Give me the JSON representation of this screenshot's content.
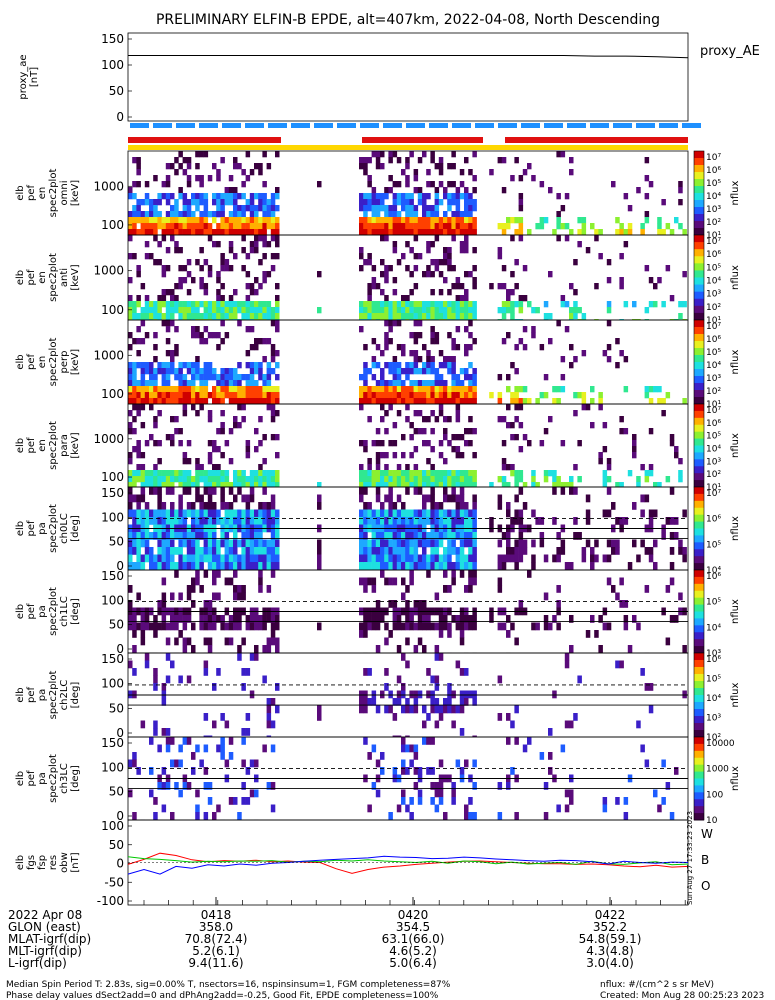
{
  "title": "PRELIMINARY ELFIN-B EPDE, alt=407km, 2022-04-08, North Descending",
  "chart_data": [
    {
      "type": "line",
      "name": "proxy_ae",
      "ylabel": [
        "proxy_ae",
        "[nT]"
      ],
      "right_label": "proxy_AE",
      "ylim": [
        -5,
        155
      ],
      "yticks": [
        "150",
        "100",
        "50",
        "0"
      ],
      "series": [
        {
          "values": [
            114,
            114,
            114,
            114,
            114,
            114,
            114,
            114,
            114,
            114,
            114,
            114,
            114,
            114,
            114,
            113,
            113,
            112,
            110
          ]
        }
      ]
    },
    {
      "type": "heatmap",
      "name": "elb_pef_en_spec2plot_omni",
      "ylabel": [
        "elb",
        "pef",
        "en",
        "spec2plot",
        "omni",
        "[keV]"
      ],
      "yticks": [
        "1000",
        "100"
      ],
      "colorbar": {
        "label": "nflux",
        "ticks": [
          "10⁷",
          "10⁶",
          "10⁵",
          "10⁴",
          "10³",
          "10²",
          "10¹"
        ]
      }
    },
    {
      "type": "heatmap",
      "name": "elb_pef_en_spec2plot_anti",
      "ylabel": [
        "elb",
        "pef",
        "en",
        "spec2plot",
        "anti",
        "[keV]"
      ],
      "yticks": [
        "1000",
        "100"
      ],
      "colorbar": {
        "label": "nflux",
        "ticks": [
          "10⁷",
          "10⁶",
          "10⁵",
          "10⁴",
          "10³",
          "10²",
          "10¹"
        ]
      }
    },
    {
      "type": "heatmap",
      "name": "elb_pef_en_spec2plot_perp",
      "ylabel": [
        "elb",
        "pef",
        "en",
        "spec2plot",
        "perp",
        "[keV]"
      ],
      "yticks": [
        "1000",
        "100"
      ],
      "colorbar": {
        "label": "nflux",
        "ticks": [
          "10⁷",
          "10⁶",
          "10⁵",
          "10⁴",
          "10³",
          "10²",
          "10¹"
        ]
      }
    },
    {
      "type": "heatmap",
      "name": "elb_pef_en_spec2plot_para",
      "ylabel": [
        "elb",
        "pef",
        "en",
        "spec2plot",
        "para",
        "[keV]"
      ],
      "yticks": [
        "1000",
        "100"
      ],
      "colorbar": {
        "label": "nflux",
        "ticks": [
          "10⁷",
          "10⁶",
          "10⁵",
          "10⁴",
          "10³",
          "10²",
          "10¹"
        ]
      }
    },
    {
      "type": "heatmap",
      "name": "elb_pef_pa_spec2plot_ch0LC",
      "ylabel": [
        "elb",
        "pef",
        "pa",
        "spec2plot",
        "ch0LC",
        "[deg]"
      ],
      "yticks": [
        "150",
        "100",
        "50",
        "0"
      ],
      "colorbar": {
        "label": "nflux",
        "ticks": [
          "10⁷",
          "10⁶",
          "10⁵",
          "10⁴"
        ]
      }
    },
    {
      "type": "heatmap",
      "name": "elb_pef_pa_spec2plot_ch1LC",
      "ylabel": [
        "elb",
        "pef",
        "pa",
        "spec2plot",
        "ch1LC",
        "[deg]"
      ],
      "yticks": [
        "150",
        "100",
        "50",
        "0"
      ],
      "colorbar": {
        "label": "nflux",
        "ticks": [
          "10⁶",
          "10⁵",
          "10⁴",
          "10³"
        ]
      }
    },
    {
      "type": "heatmap",
      "name": "elb_pef_pa_spec2plot_ch2LC",
      "ylabel": [
        "elb",
        "pef",
        "pa",
        "spec2plot",
        "ch2LC",
        "[deg]"
      ],
      "yticks": [
        "150",
        "100",
        "50",
        "0"
      ],
      "colorbar": {
        "label": "nflux",
        "ticks": [
          "10⁶",
          "10⁵",
          "10⁴",
          "10³",
          "10²"
        ]
      }
    },
    {
      "type": "heatmap",
      "name": "elb_pef_pa_spec2plot_ch3LC",
      "ylabel": [
        "elb",
        "pef",
        "pa",
        "spec2plot",
        "ch3LC",
        "[deg]"
      ],
      "yticks": [
        "150",
        "100",
        "50",
        "0"
      ],
      "colorbar": {
        "label": "nflux",
        "ticks": [
          "10000",
          "1000",
          "100",
          "10"
        ]
      }
    },
    {
      "type": "line",
      "name": "elb_fgs_fsp_res_obw",
      "ylabel": [
        "elb",
        "fgs",
        "fsp",
        "res",
        "obw",
        "[nT]"
      ],
      "yticks": [
        "100",
        "50",
        "0",
        "-50",
        "-100"
      ],
      "ylim": [
        -110,
        110
      ],
      "legend": [
        "W",
        "B",
        "O"
      ],
      "colors": [
        "#ff0000",
        "#00c800",
        "#0000ff"
      ],
      "series": [
        {
          "name": "W",
          "values": [
            -5,
            8,
            24,
            18,
            7,
            2,
            5,
            3,
            6,
            2,
            4,
            1,
            0,
            -16,
            -28,
            -18,
            -12,
            -9,
            -5,
            -2,
            1,
            3,
            4,
            2,
            0,
            -2,
            -3,
            -3,
            -5,
            -4,
            -6,
            -9,
            -11,
            -7,
            -12,
            -10
          ]
        },
        {
          "name": "B",
          "values": [
            15,
            10,
            8,
            5,
            1,
            3,
            2,
            4,
            3,
            5,
            1,
            3,
            2,
            6,
            4,
            7,
            4,
            2,
            0,
            3,
            -2,
            4,
            2,
            -3,
            1,
            -4,
            -2,
            0,
            -5,
            3,
            -3,
            -5,
            -1,
            2,
            -6,
            -4
          ]
        },
        {
          "name": "O",
          "values": [
            -30,
            -18,
            -30,
            -10,
            -15,
            -6,
            -9,
            -4,
            -7,
            -2,
            0,
            3,
            6,
            8,
            10,
            12,
            16,
            14,
            13,
            10,
            11,
            14,
            12,
            9,
            7,
            5,
            3,
            6,
            5,
            2,
            -4,
            3,
            0,
            -2,
            1,
            0
          ]
        }
      ]
    }
  ],
  "time_axis": {
    "ticks": [
      "0418",
      "0420",
      "0422"
    ]
  },
  "ancillary": {
    "rows": [
      {
        "label": "2022 Apr 08",
        "values": [
          "",
          "",
          ""
        ]
      },
      {
        "label": "GLON (east)",
        "values": [
          "358.0",
          "354.5",
          "352.2"
        ]
      },
      {
        "label": "MLAT-igrf(dip)",
        "values": [
          "70.8(72.4)",
          "63.1(66.0)",
          "54.8(59.1)"
        ]
      },
      {
        "label": "MLT-igrf(dip)",
        "values": [
          "5.2(6.1)",
          "4.6(5.2)",
          "4.3(4.8)"
        ]
      },
      {
        "label": "L-igrf(dip)",
        "values": [
          "9.4(11.6)",
          "5.0(6.4)",
          "3.0(4.0)"
        ]
      }
    ]
  },
  "footer": {
    "line1_left": "Median Spin Period T: 2.83s, sig=0.00% T, nsectors=16, nspinsinsum=1, FGM completeness=87%",
    "line2_left": "Phase delay values dSect2add=0 and dPhAng2add=-0.25, Good Fit, EPDE completeness=100%",
    "line1_right": "nflux: #/(cm^2 s sr MeV)",
    "line2_right": "Created: Mon Aug 28 00:25:23 2023",
    "side_stamp": "Sun Aug 27 17:33:23 2023"
  },
  "bars": {
    "colors": {
      "blue": "#1e90ff",
      "red": "#e01010",
      "yellow": "#ffd700"
    }
  }
}
